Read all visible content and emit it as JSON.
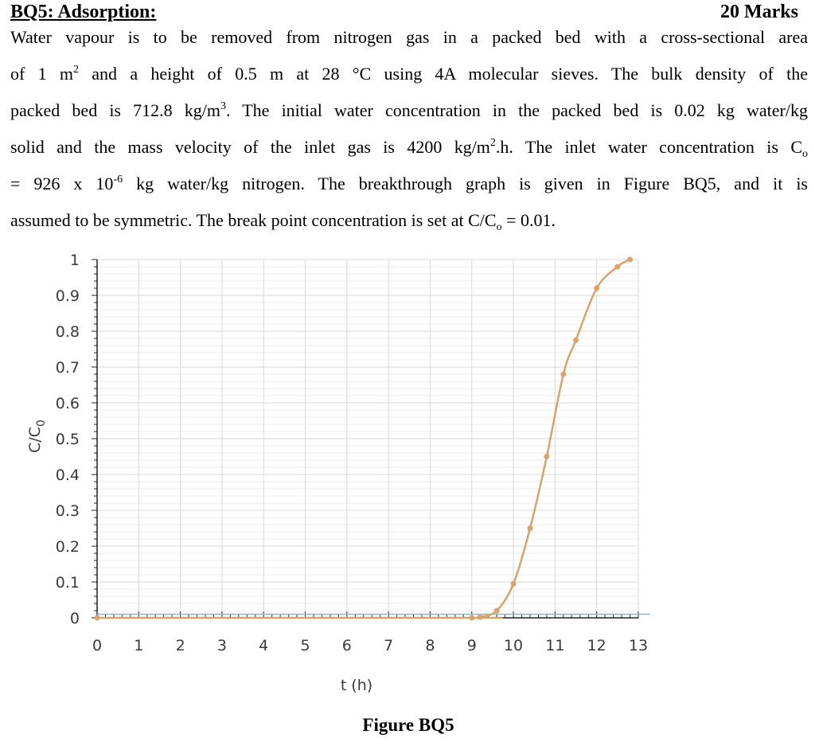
{
  "question": {
    "title": "BQ5: Adsorption:",
    "marks": "20 Marks"
  },
  "paragraph": {
    "l1": "Water vapour is to be removed from nitrogen gas in a packed bed with a cross-sectional area",
    "l2a": "of 1 m",
    "l2b": " and a height of 0.5 m at 28 °C using 4A molecular sieves. The bulk density of the",
    "l3a": "packed bed is 712.8 kg/m",
    "l3b": ". The initial water concentration in the packed bed is 0.02 kg water/kg",
    "l4a": "solid and the mass velocity of the inlet gas is 4200 kg/m",
    "l4b": ".h. The inlet water concentration is C",
    "l5a": "= 926 x 10",
    "l5b": " kg water/kg nitrogen. The breakthrough graph is given in Figure BQ5, and it is",
    "l6a": "assumed to be symmetric. The break point concentration is set at C/C",
    "l6b": " = 0.01.",
    "sup2": "2",
    "sup3": "3",
    "supneg6": "-6",
    "sub_o": "o"
  },
  "figure": {
    "caption": "Figure BQ5"
  },
  "chart_data": {
    "type": "line",
    "xlabel": "t (h)",
    "ylabel": "C/C",
    "ylabel_sub": "0",
    "xlim": [
      0,
      13
    ],
    "ylim": [
      0,
      1
    ],
    "x_ticks": [
      0,
      1,
      2,
      3,
      4,
      5,
      6,
      7,
      8,
      9,
      10,
      11,
      12,
      13
    ],
    "y_ticks": [
      0,
      0.1,
      0.2,
      0.3,
      0.4,
      0.5,
      0.6,
      0.7,
      0.8,
      0.9,
      1
    ],
    "y_tick_labels": [
      "0",
      "0.1",
      "0.2",
      "0.3",
      "0.4",
      "0.5",
      "0.6",
      "0.7",
      "0.8",
      "0.9",
      "1"
    ],
    "grid": true,
    "reference_line_y": 0.01,
    "series": [
      {
        "color": "#d9a36e",
        "x": [
          0,
          9.0,
          9.2,
          9.6,
          10.0,
          10.4,
          10.8,
          11.2,
          11.5,
          12.0,
          12.5,
          12.8
        ],
        "y": [
          0,
          0,
          0.002,
          0.02,
          0.095,
          0.25,
          0.45,
          0.68,
          0.775,
          0.92,
          0.98,
          1.0
        ]
      }
    ],
    "colors": {
      "line": "#d9a36e",
      "reference_line": "#8eb1d6",
      "grid": "#d9d9d9",
      "axis": "#222222"
    }
  }
}
